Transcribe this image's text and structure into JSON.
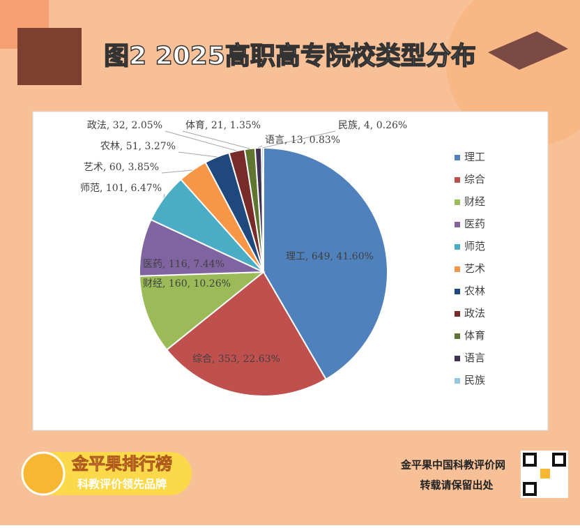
{
  "chart_data": {
    "type": "pie",
    "title": "图2  2025高职高专院校类型分布",
    "categories": [
      "理工",
      "综合",
      "财经",
      "医药",
      "师范",
      "艺术",
      "农林",
      "政法",
      "体育",
      "语言",
      "民族"
    ],
    "values": [
      649,
      353,
      160,
      116,
      101,
      60,
      51,
      32,
      21,
      13,
      4
    ],
    "value_labels": [
      "理工, 649, 41.60%",
      "综合, 353, 22.63%",
      "财经, 160, 10.26%",
      "医药, 116, 7.44%",
      "师范, 101, 6.47%",
      "艺术, 60, 3.85%",
      "农林, 51, 3.27%",
      "政法, 32, 2.05%",
      "体育, 21, 1.35%",
      "语言, 13, 0.83%",
      "民族, 4, 0.26%"
    ],
    "colors": [
      "#4f81bd",
      "#c0504d",
      "#9bbb59",
      "#8064a2",
      "#4bacc6",
      "#f79646",
      "#1f497d",
      "#772c2a",
      "#5f7530",
      "#3f3151",
      "#93c6dc"
    ],
    "legend": "right"
  },
  "brand": {
    "name": "金平果排行榜",
    "slogan": "科教评价领先品牌",
    "site": "金平果中国科教评价网",
    "notice": "转载请保留出处"
  }
}
